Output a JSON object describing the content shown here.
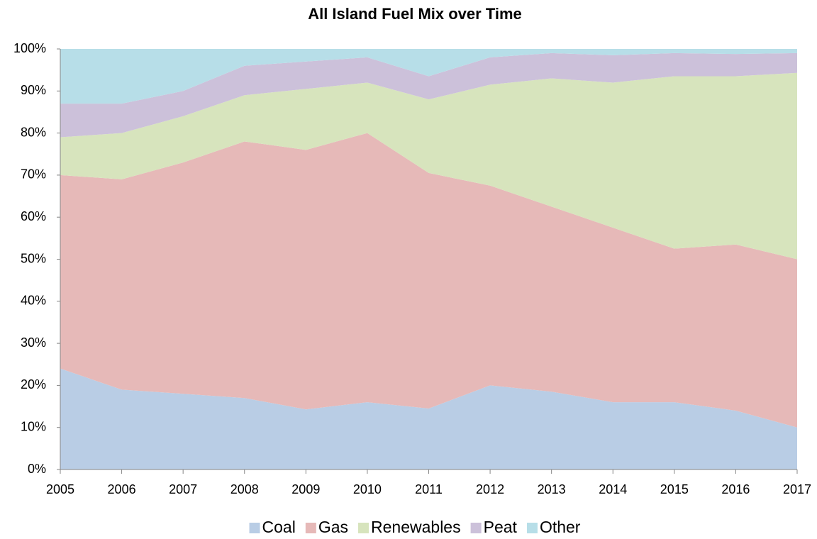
{
  "chart_data": {
    "type": "stacked_area",
    "title": "All Island Fuel Mix over Time",
    "categories": [
      "2005",
      "2006",
      "2007",
      "2008",
      "2009",
      "2010",
      "2011",
      "2012",
      "2013",
      "2014",
      "2015",
      "2016",
      "2017"
    ],
    "series": [
      {
        "name": "Coal",
        "color": "#b9cde5",
        "values": [
          24,
          19,
          18,
          17,
          14.3,
          16,
          14.5,
          20,
          18.5,
          16,
          16,
          14,
          10
        ]
      },
      {
        "name": "Gas",
        "color": "#e6b9b8",
        "values": [
          46,
          50,
          55,
          61,
          61.7,
          64,
          56,
          47.5,
          44,
          41.5,
          36.5,
          39.5,
          40
        ]
      },
      {
        "name": "Renewables",
        "color": "#d7e4bd",
        "values": [
          9,
          11,
          11,
          11,
          14.5,
          12,
          17.5,
          24,
          30.5,
          34.5,
          41,
          40,
          44.3
        ]
      },
      {
        "name": "Peat",
        "color": "#ccc1da",
        "values": [
          8,
          7,
          6,
          7,
          6.5,
          6,
          5.5,
          6.5,
          6,
          6.5,
          5.5,
          5.3,
          4.7
        ]
      },
      {
        "name": "Other",
        "color": "#b7dee8",
        "values": [
          13,
          13,
          10,
          4,
          3,
          2,
          6.5,
          2,
          1,
          1.5,
          1,
          1.2,
          1
        ]
      }
    ],
    "ylim": [
      0,
      100
    ],
    "yticks": [
      {
        "value": 0,
        "label": "0%"
      },
      {
        "value": 10,
        "label": "10%"
      },
      {
        "value": 20,
        "label": "20%"
      },
      {
        "value": 30,
        "label": "30%"
      },
      {
        "value": 40,
        "label": "40%"
      },
      {
        "value": 50,
        "label": "50%"
      },
      {
        "value": 60,
        "label": "60%"
      },
      {
        "value": 70,
        "label": "70%"
      },
      {
        "value": 80,
        "label": "80%"
      },
      {
        "value": 90,
        "label": "90%"
      },
      {
        "value": 100,
        "label": "100%"
      }
    ],
    "grid": false,
    "legend": "bottom"
  }
}
